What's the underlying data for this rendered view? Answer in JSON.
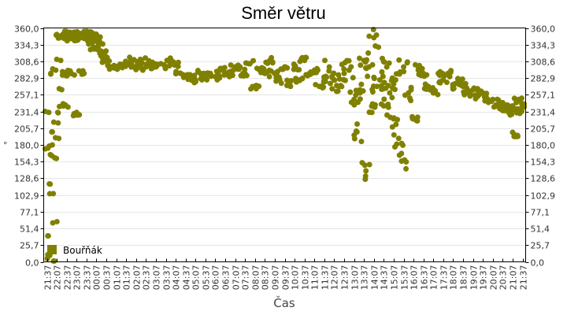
{
  "title": "Směr větru",
  "colors": {
    "series": "#808000",
    "grid": "#e6e6e6",
    "axis": "#000000"
  },
  "chart_data": {
    "type": "scatter",
    "title": "Směr větru",
    "xlabel": "Čas",
    "ylabel": "°",
    "ylim": [
      0,
      360
    ],
    "grid": true,
    "legend_position": "bottom-left inside",
    "y_ticks": [
      "0,0",
      "25,7",
      "51,4",
      "77,1",
      "102,9",
      "128,6",
      "154,3",
      "180,0",
      "205,7",
      "231,4",
      "257,1",
      "282,9",
      "308,6",
      "334,3",
      "360,0"
    ],
    "x_ticks": [
      "21:37",
      "22:07",
      "22:37",
      "23:07",
      "23:37",
      "00:07",
      "00:37",
      "01:07",
      "01:37",
      "02:07",
      "02:37",
      "03:07",
      "03:37",
      "04:07",
      "04:37",
      "05:07",
      "05:37",
      "06:07",
      "06:37",
      "07:07",
      "07:37",
      "08:07",
      "08:37",
      "09:07",
      "09:37",
      "10:07",
      "10:37",
      "11:07",
      "11:37",
      "12:07",
      "12:37",
      "13:07",
      "13:37",
      "14:07",
      "14:37",
      "15:07",
      "15:37",
      "16:07",
      "16:37",
      "17:07",
      "17:37",
      "18:07",
      "18:37",
      "19:07",
      "19:37",
      "20:07",
      "20:37",
      "21:07",
      "21:37"
    ],
    "series": [
      {
        "name": "Bouřňák",
        "x_tick_index": [
          0.05,
          0.1,
          0.15,
          0.2,
          0.25,
          0.3,
          0.35,
          0.4,
          0.45,
          0.5,
          0.55,
          0.6,
          0.65,
          0.7,
          0.75,
          0.8,
          0.9,
          1.0,
          1.1,
          1.2,
          1.3,
          1.4,
          1.5,
          1.6,
          1.7,
          1.8,
          2.0,
          2.2,
          2.4,
          2.6,
          2.8,
          3.0,
          3.2,
          3.4,
          3.6,
          3.8,
          4.0,
          4.2,
          4.4,
          4.6,
          4.8,
          5.0,
          5.3,
          5.6,
          6.0,
          6.5,
          7.0,
          7.5,
          8.0,
          8.5,
          9.0,
          9.5,
          10.0,
          10.5,
          11.0,
          11.5,
          12.0,
          12.5,
          13.0,
          13.5,
          14.0,
          14.5,
          15.0,
          15.5,
          16.0,
          16.5,
          17.0,
          17.5,
          18.0,
          18.5,
          19.0,
          19.5,
          20.0,
          20.5,
          21.0,
          21.5,
          22.0,
          22.5,
          23.0,
          23.5,
          24.0,
          24.5,
          25.0,
          25.5,
          26.0,
          26.5,
          27.0,
          27.5,
          28.0,
          28.5,
          29.0,
          29.5,
          30.0,
          30.5,
          31.0,
          31.3,
          31.6,
          32.0,
          32.2,
          32.5,
          32.8,
          33.0,
          33.3,
          33.6,
          34.0,
          34.3,
          34.6,
          35.0,
          35.2,
          35.5,
          35.8,
          36.0,
          36.5,
          37.0,
          37.5,
          38.0,
          38.5,
          39.0,
          39.5,
          40.0,
          40.5,
          41.0,
          41.5,
          42.0,
          42.5,
          43.0,
          43.5,
          44.0,
          44.5,
          45.0,
          45.5,
          46.0,
          46.3,
          46.6,
          47.0,
          47.3,
          47.6,
          47.8,
          48.0
        ],
        "values": [
          5,
          175,
          40,
          230,
          120,
          10,
          165,
          290,
          20,
          200,
          180,
          60,
          105,
          215,
          0,
          160,
          295,
          350,
          230,
          190,
          345,
          310,
          265,
          350,
          240,
          290,
          345,
          350,
          290,
          350,
          345,
          230,
          350,
          345,
          290,
          350,
          350,
          345,
          340,
          350,
          330,
          350,
          340,
          320,
          310,
          300,
          300,
          300,
          305,
          310,
          300,
          310,
          300,
          305,
          300,
          305,
          300,
          310,
          305,
          290,
          285,
          285,
          280,
          290,
          285,
          290,
          285,
          295,
          290,
          290,
          300,
          300,
          290,
          305,
          270,
          295,
          290,
          310,
          290,
          280,
          300,
          275,
          300,
          280,
          310,
          290,
          295,
          270,
          280,
          300,
          280,
          270,
          290,
          295,
          250,
          200,
          260,
          310,
          140,
          300,
          230,
          345,
          270,
          280,
          240,
          300,
          260,
          220,
          280,
          190,
          155,
          300,
          260,
          220,
          300,
          290,
          270,
          260,
          290,
          280,
          290,
          270,
          280,
          270,
          260,
          265,
          255,
          260,
          250,
          250,
          240,
          245,
          235,
          230,
          240,
          195,
          250,
          230,
          240,
          295,
          225,
          185,
          180,
          160,
          230
        ]
      }
    ]
  },
  "legend": {
    "label": "Bouřňák"
  },
  "axes": {
    "xlabel": "Čas",
    "ylabel": "°"
  }
}
